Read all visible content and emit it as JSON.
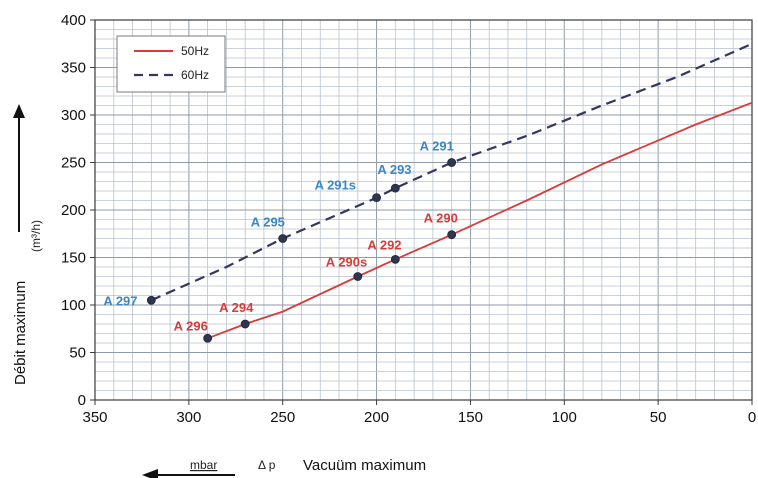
{
  "chart_data": {
    "type": "line",
    "xlabel": "Vacuüm maximum",
    "x_unit": "mbar",
    "x_symbol": "Δ p",
    "ylabel": "Débit maximum",
    "y_unit": "(m³/h)",
    "xlim": [
      350,
      0
    ],
    "ylim": [
      0,
      400
    ],
    "x_ticks": [
      350,
      300,
      250,
      200,
      150,
      100,
      50,
      0
    ],
    "y_ticks": [
      0,
      50,
      100,
      150,
      200,
      250,
      300,
      350,
      400
    ],
    "grid": true,
    "legend_position": "top-left",
    "series": [
      {
        "name": "50Hz",
        "color": "#d93a3a",
        "dash": "solid",
        "points": [
          [
            290,
            65
          ],
          [
            270,
            80
          ],
          [
            250,
            93
          ],
          [
            210,
            130
          ],
          [
            190,
            148
          ],
          [
            160,
            174
          ],
          [
            120,
            210
          ],
          [
            80,
            248
          ],
          [
            30,
            290
          ],
          [
            0,
            313
          ]
        ],
        "labeled_points": [
          {
            "label": "A 296",
            "x": 290,
            "y": 65
          },
          {
            "label": "A 294",
            "x": 270,
            "y": 80
          },
          {
            "label": "A 290s",
            "x": 210,
            "y": 130
          },
          {
            "label": "A 292",
            "x": 190,
            "y": 148
          },
          {
            "label": "A 290",
            "x": 160,
            "y": 174
          }
        ]
      },
      {
        "name": "60Hz",
        "color": "#35375f",
        "dash": "dashed",
        "points": [
          [
            320,
            105
          ],
          [
            280,
            140
          ],
          [
            250,
            170
          ],
          [
            200,
            213
          ],
          [
            190,
            223
          ],
          [
            160,
            250
          ],
          [
            120,
            278
          ],
          [
            80,
            310
          ],
          [
            40,
            340
          ],
          [
            0,
            375
          ]
        ],
        "labeled_points": [
          {
            "label": "A 297",
            "x": 320,
            "y": 105
          },
          {
            "label": "A 295",
            "x": 250,
            "y": 170
          },
          {
            "label": "A 291s",
            "x": 200,
            "y": 213
          },
          {
            "label": "A 293",
            "x": 190,
            "y": 223
          },
          {
            "label": "A 291",
            "x": 160,
            "y": 250
          }
        ]
      }
    ],
    "label_colors": {
      "50Hz": "#d93a3a",
      "60Hz": "#3c86c4"
    }
  }
}
